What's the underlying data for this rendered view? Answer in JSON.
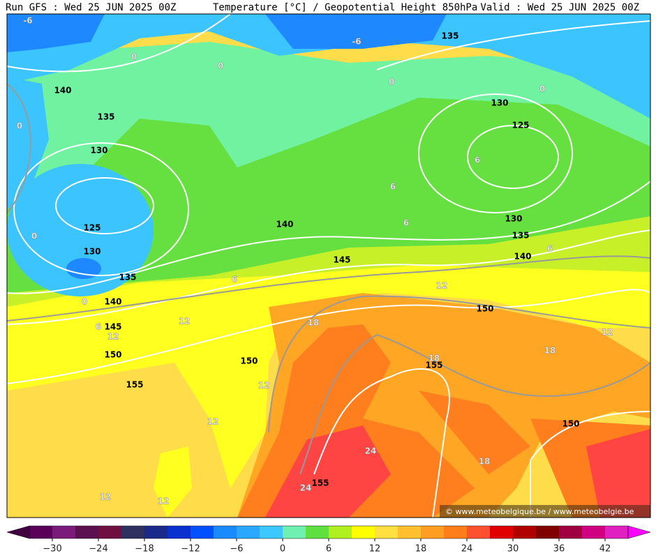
{
  "header": {
    "run": "Run GFS : Wed 25 JUN 2025 00Z",
    "title": "Temperature [°C] / Geopotential Height 850hPa",
    "valid": "Valid : Wed 25 JUN 2025 00Z"
  },
  "map": {
    "height_labels": [
      "135",
      "140",
      "135",
      "130",
      "125",
      "130",
      "135",
      "140",
      "145",
      "150",
      "155",
      "150",
      "140",
      "145",
      "150",
      "155",
      "150",
      "155",
      "130",
      "125",
      "130",
      "135",
      "140"
    ],
    "temperature_labels": [
      "-6",
      "-6",
      "0",
      "0",
      "0",
      "0",
      "0",
      "0",
      "0",
      "6",
      "6",
      "6",
      "6",
      "6",
      "6",
      "12",
      "12",
      "12",
      "12",
      "12",
      "12",
      "12",
      "12",
      "18",
      "18",
      "18",
      "18",
      "24",
      "24"
    ],
    "watermark": "© www.meteobelgique.be / www.meteobelgie.be"
  },
  "colorbar": {
    "colors": [
      "#5a005a",
      "#7a1a7a",
      "#5c1050",
      "#701040",
      "#303060",
      "#1a2a8a",
      "#0a30d0",
      "#0050ff",
      "#1a8aff",
      "#2aa8ff",
      "#3cc8ff",
      "#70f0b0",
      "#60e040",
      "#b0f020",
      "#ffff00",
      "#ffe040",
      "#ffc030",
      "#ff9e20",
      "#ff7e1a",
      "#ff5030",
      "#e00000",
      "#b00000",
      "#800000",
      "#a00040",
      "#d00080",
      "#e020c0"
    ],
    "left_color": "#400040",
    "right_color": "#ff00ff",
    "ticks": [
      "−30",
      "−24",
      "−18",
      "−12",
      "−6",
      "0",
      "6",
      "12",
      "18",
      "24",
      "30",
      "36",
      "42"
    ]
  }
}
